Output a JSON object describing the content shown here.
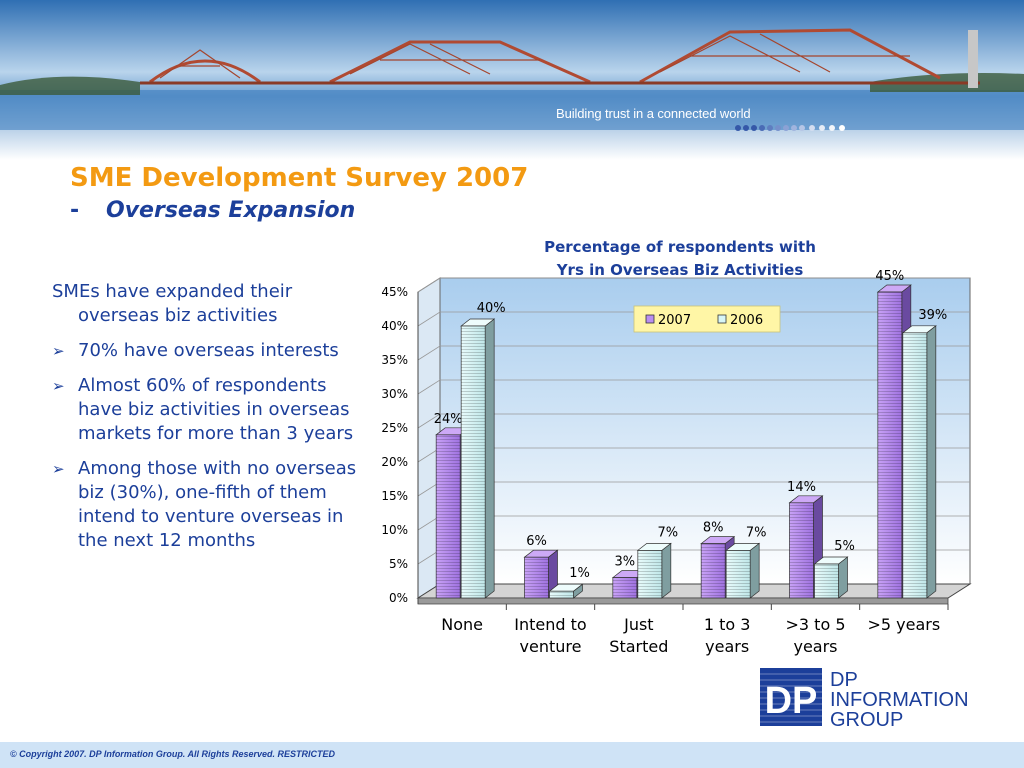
{
  "banner": {
    "tagline": "Building trust in a connected world"
  },
  "title": {
    "main": "SME Development Survey 2007",
    "dash": "-",
    "sub": "Overseas Expansion"
  },
  "bullets": {
    "lead": "SMEs have expanded their overseas biz activities",
    "items": [
      "70% have overseas interests",
      "Almost 60% of respondents have biz activities in overseas markets for more than 3 years",
      "Among those with no overseas biz (30%), one-fifth of them intend to venture overseas in the next 12 months"
    ]
  },
  "chart_data": {
    "type": "bar",
    "title": "Percentage of respondents with Yrs in Overseas Biz Activities",
    "title_lines": [
      "Percentage of respondents with",
      "Yrs in Overseas Biz Activities"
    ],
    "categories": [
      [
        "None"
      ],
      [
        "Intend to",
        "venture"
      ],
      [
        "Just",
        "Started"
      ],
      [
        "1 to 3",
        "years"
      ],
      [
        ">3 to 5",
        "years"
      ],
      [
        ">5 years"
      ]
    ],
    "series": [
      {
        "name": "2007",
        "values": [
          24,
          6,
          3,
          8,
          14,
          45
        ],
        "color": "#b98ef0"
      },
      {
        "name": "2006",
        "values": [
          40,
          1,
          7,
          7,
          5,
          39
        ],
        "color": "#d8f6f6"
      }
    ],
    "yticks": [
      "0%",
      "5%",
      "10%",
      "15%",
      "20%",
      "25%",
      "30%",
      "35%",
      "40%",
      "45%"
    ],
    "ylim": [
      0,
      45
    ],
    "legend_position": "top-center",
    "grid": true
  },
  "logo": {
    "lines": [
      "DP",
      "INFORMATION",
      "GROUP"
    ],
    "mark": "DP",
    "color": "#1c3f9a"
  },
  "footer": {
    "text": "© Copyright 2007. DP Information Group. All Rights Reserved. RESTRICTED"
  }
}
